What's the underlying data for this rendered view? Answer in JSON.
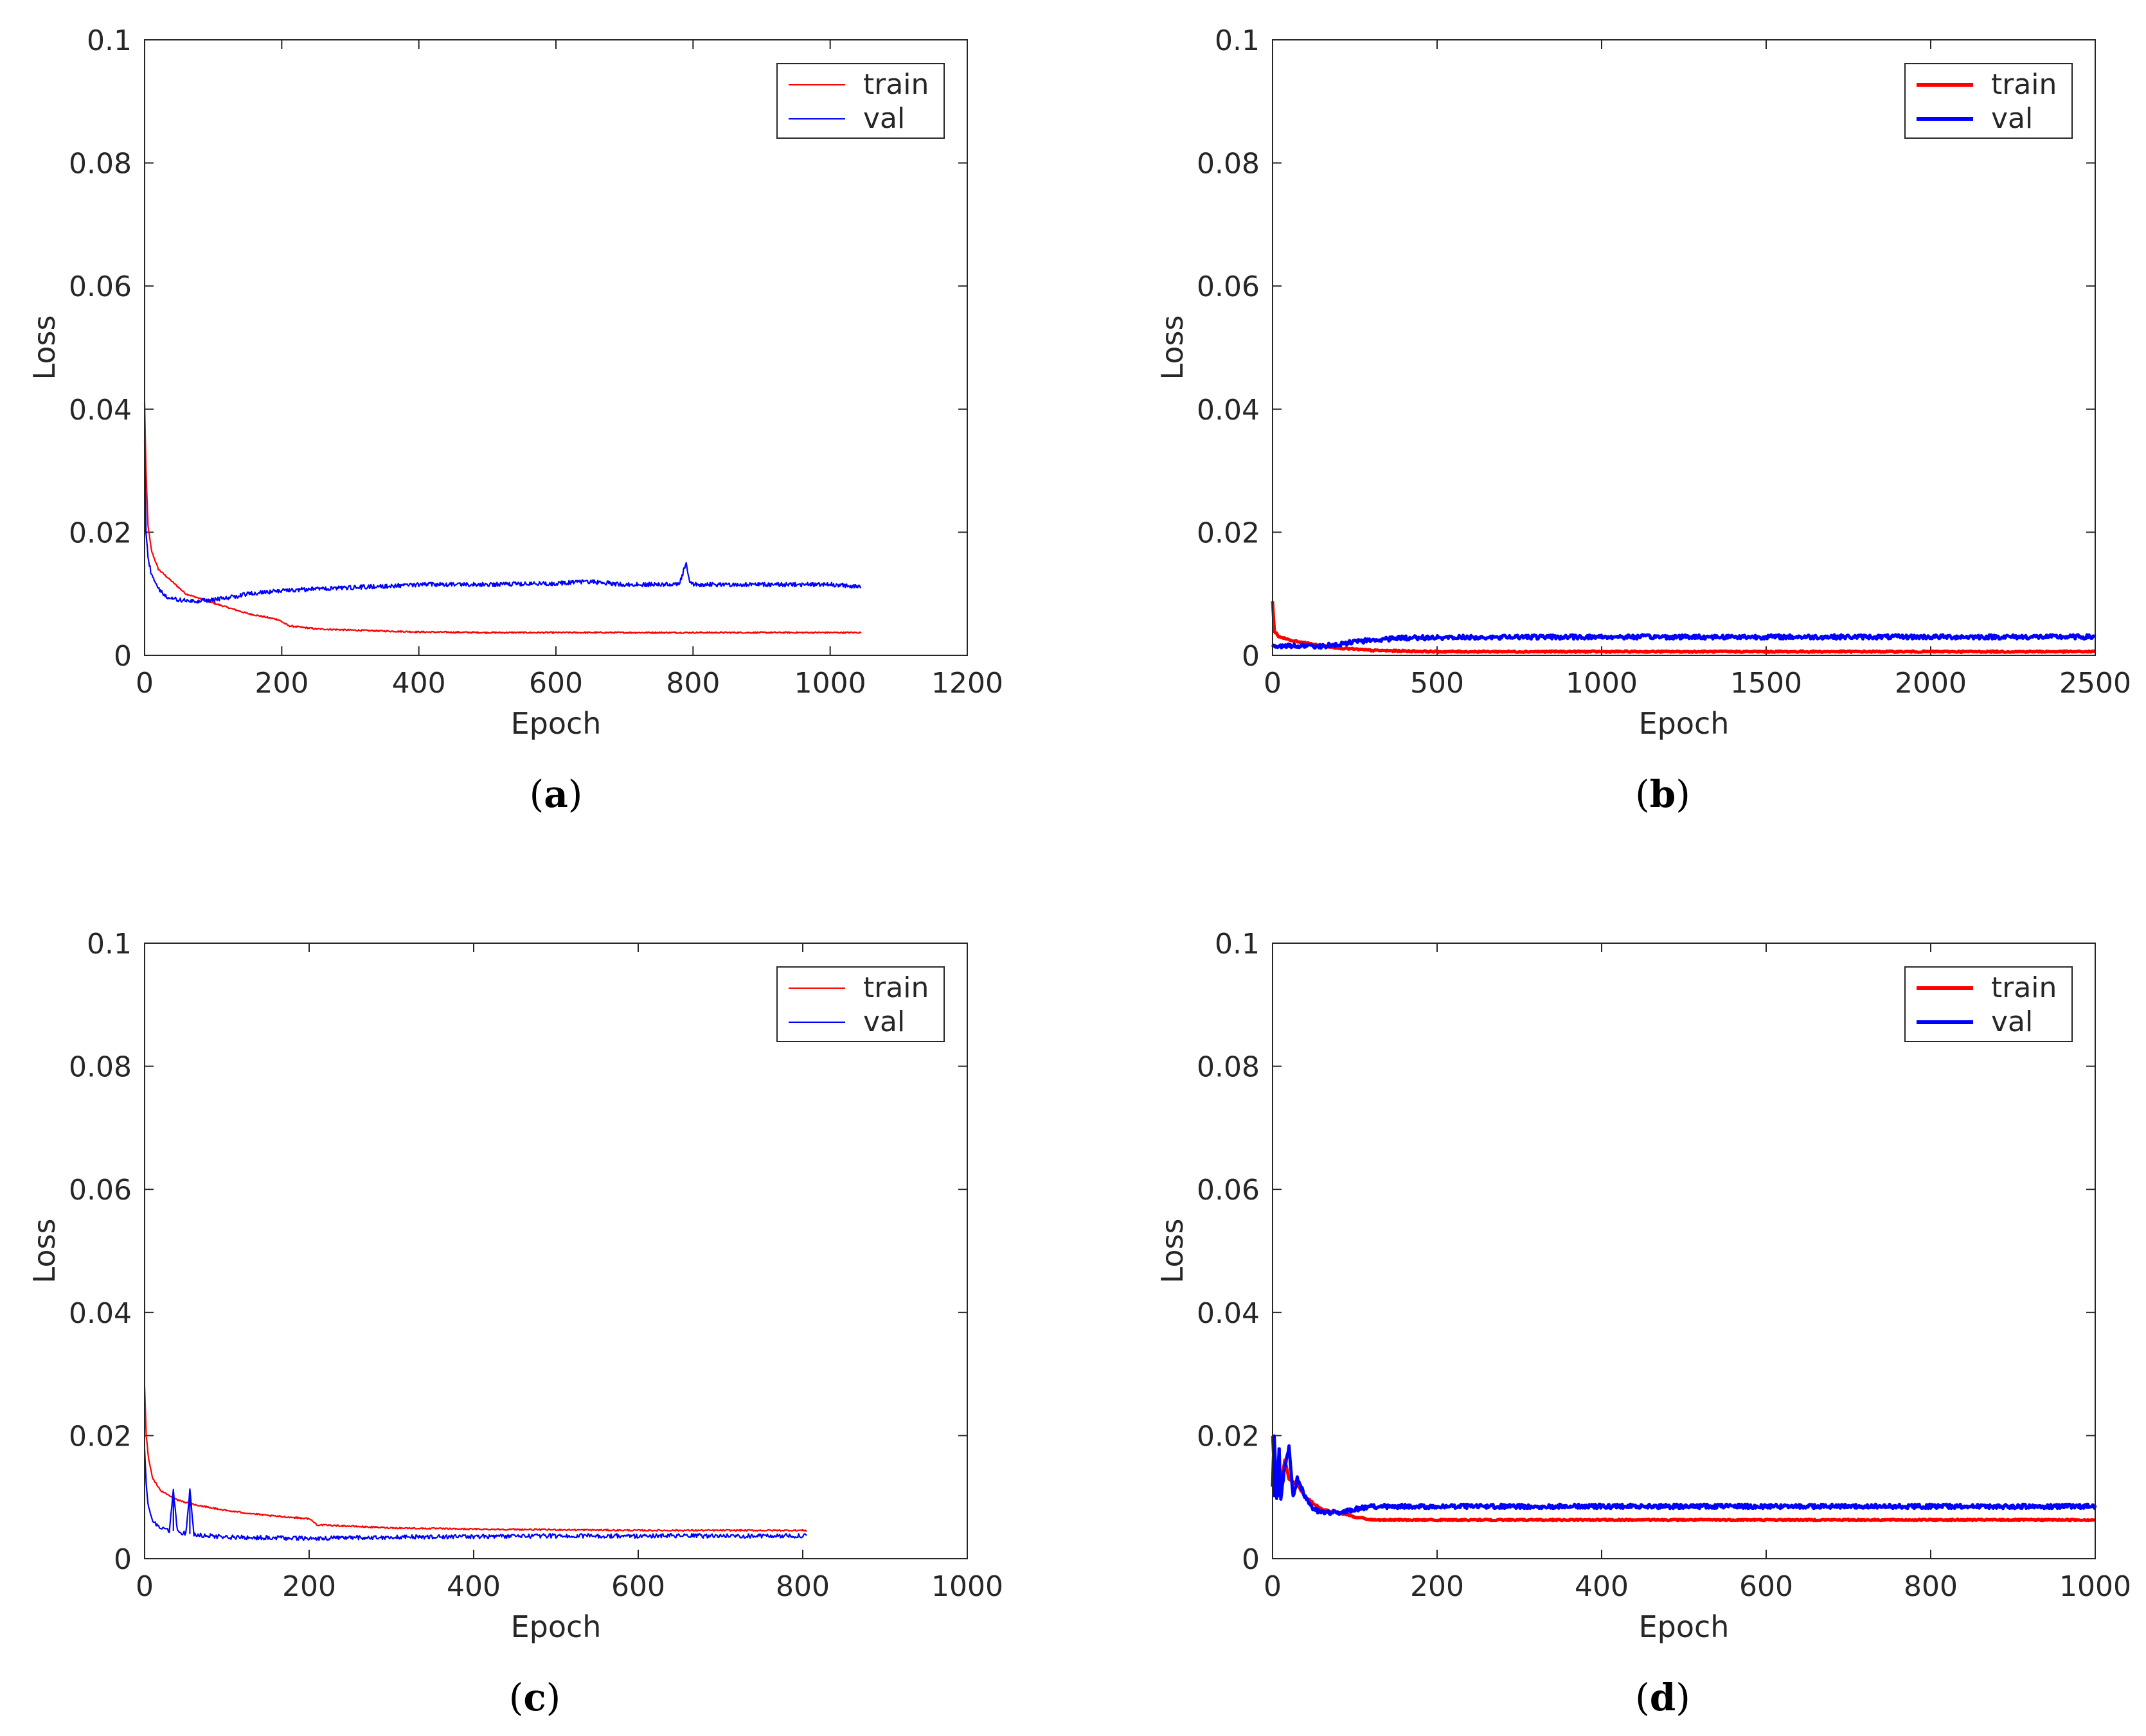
{
  "chart_data": [
    {
      "id": "a",
      "type": "line",
      "caption_letter": "a",
      "xlabel": "Epoch",
      "ylabel": "Loss",
      "xlim": [
        0,
        1200
      ],
      "ylim": [
        0,
        0.1
      ],
      "xticks": [
        0,
        200,
        400,
        600,
        800,
        1000,
        1200
      ],
      "yticks": [
        0,
        0.02,
        0.04,
        0.06,
        0.08,
        0.1
      ],
      "legend": {
        "position": "top-right",
        "line_weight": "thin"
      },
      "series": [
        {
          "name": "train",
          "color": "#ff0000",
          "x": [
            0,
            2,
            5,
            10,
            20,
            40,
            60,
            100,
            150,
            195,
            210,
            250,
            300,
            400,
            500,
            600,
            700,
            800,
            900,
            1000,
            1045
          ],
          "y": [
            0.041,
            0.03,
            0.021,
            0.017,
            0.014,
            0.012,
            0.01,
            0.0085,
            0.0068,
            0.0058,
            0.0048,
            0.0043,
            0.0041,
            0.0038,
            0.0037,
            0.0037,
            0.0037,
            0.0037,
            0.0037,
            0.0037,
            0.0037
          ]
        },
        {
          "name": "val",
          "color": "#0000ff",
          "x": [
            0,
            2,
            5,
            10,
            20,
            30,
            50,
            70,
            100,
            130,
            150,
            200,
            250,
            300,
            400,
            500,
            600,
            650,
            700,
            780,
            790,
            795,
            800,
            900,
            1000,
            1045
          ],
          "y": [
            0.035,
            0.02,
            0.016,
            0.013,
            0.011,
            0.0095,
            0.009,
            0.0088,
            0.009,
            0.0095,
            0.01,
            0.0105,
            0.0108,
            0.011,
            0.0115,
            0.0115,
            0.0117,
            0.012,
            0.0115,
            0.0115,
            0.015,
            0.0118,
            0.0115,
            0.0115,
            0.0115,
            0.0112
          ]
        }
      ]
    },
    {
      "id": "b",
      "type": "line",
      "caption_letter": "b",
      "xlabel": "Epoch",
      "ylabel": "Loss",
      "xlim": [
        0,
        2500
      ],
      "ylim": [
        0,
        0.1
      ],
      "xticks": [
        0,
        500,
        1000,
        1500,
        2000,
        2500
      ],
      "yticks": [
        0,
        0.02,
        0.04,
        0.06,
        0.08,
        0.1
      ],
      "legend": {
        "position": "top-right",
        "line_weight": "thick"
      },
      "series": [
        {
          "name": "train",
          "color": "#ff0000",
          "x": [
            0,
            5,
            20,
            50,
            100,
            200,
            300,
            500,
            1000,
            1500,
            2000,
            2500
          ],
          "y": [
            0.0088,
            0.004,
            0.003,
            0.0025,
            0.002,
            0.0012,
            0.0008,
            0.0006,
            0.0006,
            0.0006,
            0.0006,
            0.0006
          ]
        },
        {
          "name": "val",
          "color": "#0000ff",
          "x": [
            0,
            20,
            50,
            100,
            150,
            200,
            300,
            400,
            500,
            1000,
            1500,
            2000,
            2500
          ],
          "y": [
            0.0015,
            0.0014,
            0.0016,
            0.0015,
            0.0015,
            0.0018,
            0.0025,
            0.0028,
            0.0029,
            0.003,
            0.003,
            0.003,
            0.003
          ]
        }
      ]
    },
    {
      "id": "c",
      "type": "line",
      "caption_letter": "c",
      "xlabel": "Epoch",
      "ylabel": "Loss",
      "xlim": [
        0,
        1000
      ],
      "ylim": [
        0,
        0.1
      ],
      "xticks": [
        0,
        200,
        400,
        600,
        800,
        1000
      ],
      "yticks": [
        0,
        0.02,
        0.04,
        0.06,
        0.08,
        0.1
      ],
      "legend": {
        "position": "top-right",
        "line_weight": "thin"
      },
      "series": [
        {
          "name": "train",
          "color": "#ff0000",
          "x": [
            0,
            2,
            5,
            10,
            20,
            40,
            60,
            100,
            150,
            200,
            210,
            300,
            400,
            500,
            600,
            700,
            805
          ],
          "y": [
            0.028,
            0.02,
            0.016,
            0.013,
            0.011,
            0.0095,
            0.0088,
            0.0078,
            0.007,
            0.0065,
            0.0055,
            0.005,
            0.0048,
            0.0047,
            0.0046,
            0.0046,
            0.0046
          ]
        },
        {
          "name": "val",
          "color": "#0000ff",
          "x": [
            0,
            2,
            5,
            10,
            20,
            30,
            35,
            40,
            50,
            55,
            60,
            70,
            100,
            150,
            200,
            300,
            400,
            500,
            600,
            700,
            805
          ],
          "y": [
            0.018,
            0.012,
            0.008,
            0.006,
            0.005,
            0.0045,
            0.011,
            0.0045,
            0.004,
            0.011,
            0.004,
            0.0038,
            0.0035,
            0.0034,
            0.0033,
            0.0035,
            0.0036,
            0.0037,
            0.0037,
            0.0037,
            0.0037
          ]
        }
      ]
    },
    {
      "id": "d",
      "type": "line",
      "caption_letter": "d",
      "xlabel": "Epoch",
      "ylabel": "Loss",
      "xlim": [
        0,
        1000
      ],
      "ylim": [
        0,
        0.1
      ],
      "xticks": [
        0,
        200,
        400,
        600,
        800,
        1000
      ],
      "yticks": [
        0,
        0.02,
        0.04,
        0.06,
        0.08,
        0.1
      ],
      "legend": {
        "position": "top-right",
        "line_weight": "thick"
      },
      "series": [
        {
          "name": "train",
          "color": "#ff0000",
          "x": [
            0,
            2,
            5,
            10,
            15,
            20,
            30,
            40,
            50,
            60,
            80,
            100,
            120,
            150,
            200,
            400,
            600,
            800,
            1000
          ],
          "y": [
            0.02,
            0.015,
            0.013,
            0.012,
            0.016,
            0.013,
            0.012,
            0.01,
            0.009,
            0.008,
            0.0075,
            0.0068,
            0.0063,
            0.0063,
            0.0063,
            0.0063,
            0.0063,
            0.0063,
            0.0063
          ]
        },
        {
          "name": "val",
          "color": "#0000ff",
          "x": [
            0,
            2,
            5,
            8,
            10,
            15,
            20,
            25,
            30,
            40,
            50,
            60,
            80,
            100,
            120,
            150,
            200,
            400,
            600,
            800,
            1000
          ],
          "y": [
            0.012,
            0.02,
            0.01,
            0.018,
            0.01,
            0.015,
            0.018,
            0.01,
            0.013,
            0.01,
            0.008,
            0.0075,
            0.0075,
            0.008,
            0.0085,
            0.0085,
            0.0085,
            0.0085,
            0.0085,
            0.0085,
            0.0085
          ]
        }
      ]
    }
  ]
}
